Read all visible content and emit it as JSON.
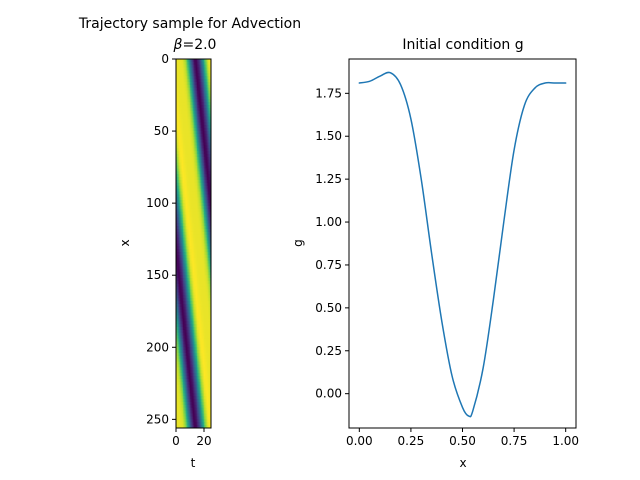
{
  "chart_data": [
    {
      "type": "heatmap",
      "title_line1": "Trajectory sample for Advection",
      "title_line2_symbol": "β",
      "title_line2_value": "=2.0",
      "xlabel": "t",
      "ylabel": "x",
      "xlim": [
        0,
        25
      ],
      "ylim": [
        256,
        0
      ],
      "xticks": [
        0,
        20
      ],
      "yticks": [
        0,
        50,
        100,
        150,
        200,
        250
      ],
      "colormap": "viridis",
      "colors": {
        "low": "#440154",
        "mid": "#21918c",
        "high": "#fde725"
      },
      "advection_speed": 2.0,
      "description_cells": "field value g(x - beta*t) sampled on a 256 x 25 grid"
    },
    {
      "type": "line",
      "title": "Initial condition g",
      "xlabel": "x",
      "ylabel": "g",
      "xlim": [
        -0.05,
        1.05
      ],
      "ylim": [
        -0.2,
        1.95
      ],
      "xticks": [
        0.0,
        0.25,
        0.5,
        0.75,
        1.0
      ],
      "xtick_labels": [
        "0.00",
        "0.25",
        "0.50",
        "0.75",
        "1.00"
      ],
      "yticks": [
        0.0,
        0.25,
        0.5,
        0.75,
        1.0,
        1.25,
        1.5,
        1.75
      ],
      "ytick_labels": [
        "0.00",
        "0.25",
        "0.50",
        "0.75",
        "1.00",
        "1.25",
        "1.50",
        "1.75"
      ],
      "line_color": "#1f77b4",
      "series": [
        {
          "name": "g",
          "x": [
            0.0,
            0.05,
            0.1,
            0.15,
            0.2,
            0.25,
            0.3,
            0.35,
            0.4,
            0.45,
            0.5,
            0.53,
            0.55,
            0.6,
            0.65,
            0.7,
            0.75,
            0.8,
            0.85,
            0.9,
            0.95,
            1.0
          ],
          "y": [
            1.81,
            1.82,
            1.85,
            1.87,
            1.8,
            1.6,
            1.25,
            0.82,
            0.42,
            0.1,
            -0.08,
            -0.13,
            -0.1,
            0.15,
            0.55,
            1.0,
            1.42,
            1.68,
            1.78,
            1.81,
            1.81,
            1.81
          ]
        }
      ]
    }
  ]
}
